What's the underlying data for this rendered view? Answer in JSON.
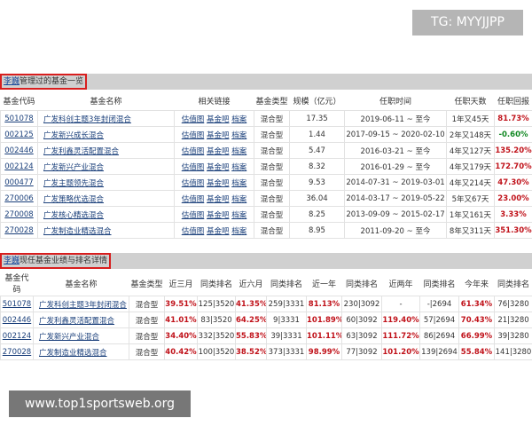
{
  "tg_badge": "TG: MYYJJPP",
  "watermark": "www.top1sportsweb.org",
  "manager": "李巍",
  "section1": {
    "title_suffix": "管理过的基金一览",
    "headers": [
      "基金代码",
      "基金名称",
      "相关链接",
      "基金类型",
      "规模（亿元）",
      "任职时间",
      "任职天数",
      "任职回报"
    ],
    "links": [
      "估值图",
      "基金吧",
      "档案"
    ],
    "rows": [
      [
        "501078",
        "广发科创主题3年封闭混合",
        "混合型",
        "17.35",
        "2019-06-11 ~ 至今",
        "1年又45天",
        "81.73%"
      ],
      [
        "002125",
        "广发新兴成长混合",
        "混合型",
        "1.44",
        "2017-09-15 ~ 2020-02-10",
        "2年又148天",
        "-0.60%"
      ],
      [
        "002446",
        "广发利鑫灵活配置混合",
        "混合型",
        "5.47",
        "2016-03-21 ~ 至今",
        "4年又127天",
        "135.20%"
      ],
      [
        "002124",
        "广发新兴产业混合",
        "混合型",
        "8.32",
        "2016-01-29 ~ 至今",
        "4年又179天",
        "172.70%"
      ],
      [
        "000477",
        "广发主题领先混合",
        "混合型",
        "9.53",
        "2014-07-31 ~ 2019-03-01",
        "4年又214天",
        "47.30%"
      ],
      [
        "270006",
        "广发策略优选混合",
        "混合型",
        "36.04",
        "2014-03-17 ~ 2019-05-22",
        "5年又67天",
        "23.00%"
      ],
      [
        "270008",
        "广发核心精选混合",
        "混合型",
        "8.25",
        "2013-09-09 ~ 2015-02-17",
        "1年又161天",
        "3.33%"
      ],
      [
        "270028",
        "广发制造业精选混合",
        "混合型",
        "8.95",
        "2011-09-20 ~ 至今",
        "8年又311天",
        "351.30%"
      ]
    ]
  },
  "section2": {
    "title_suffix": "现任基金业绩与排名详情",
    "headers": [
      "基金代码",
      "基金名称",
      "基金类型",
      "近三月",
      "同类排名",
      "近六月",
      "同类排名",
      "近一年",
      "同类排名",
      "近两年",
      "同类排名",
      "今年来",
      "同类排名"
    ],
    "rows": [
      [
        "501078",
        "广发科创主题3年封闭混合",
        "混合型",
        "39.51%",
        "125|3520",
        "41.35%",
        "259|3331",
        "81.13%",
        "230|3092",
        "-",
        "-|2694",
        "61.34%",
        "76|3280"
      ],
      [
        "002446",
        "广发利鑫灵活配置混合",
        "混合型",
        "41.01%",
        "83|3520",
        "64.25%",
        "9|3331",
        "101.89%",
        "60|3092",
        "119.40%",
        "57|2694",
        "70.43%",
        "21|3280"
      ],
      [
        "002124",
        "广发新兴产业混合",
        "混合型",
        "34.40%",
        "332|3520",
        "55.83%",
        "39|3331",
        "101.11%",
        "63|3092",
        "111.72%",
        "86|2694",
        "66.99%",
        "39|3280"
      ],
      [
        "270028",
        "广发制造业精选混合",
        "混合型",
        "40.42%",
        "100|3520",
        "38.52%",
        "373|3331",
        "98.99%",
        "77|3092",
        "101.20%",
        "139|2694",
        "55.84%",
        "141|3280"
      ]
    ]
  },
  "colors": {
    "positive": "#c0121a",
    "negative": "#118822",
    "highlight_border": "#d81e1e",
    "link": "#1a3f7a"
  }
}
